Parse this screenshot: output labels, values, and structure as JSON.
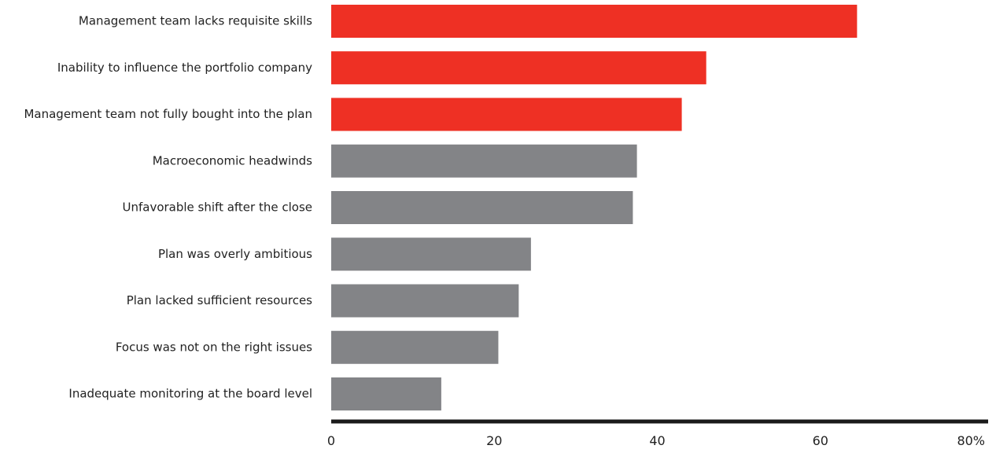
{
  "chart_data": {
    "type": "bar",
    "orientation": "horizontal",
    "categories": [
      "Management team lacks requisite skills",
      "Inability to influence the portfolio company",
      "Management team not fully bought into the plan",
      "Macroeconomic headwinds",
      "Unfavorable shift after the close",
      "Plan was overly ambitious",
      "Plan lacked sufficient resources",
      "Focus was not on the right issues",
      "Inadequate monitoring at the board level"
    ],
    "values": [
      64.5,
      46,
      43,
      37.5,
      37,
      24.5,
      23,
      20.5,
      13.5
    ],
    "highlight": [
      true,
      true,
      true,
      false,
      false,
      false,
      false,
      false,
      false
    ],
    "xlim": [
      0,
      80
    ],
    "xticks": [
      0,
      20,
      40,
      60,
      80
    ],
    "xtick_labels": [
      "0",
      "20",
      "40",
      "60",
      "80%"
    ],
    "grid": false,
    "colors": {
      "highlight": "#ee3024",
      "default": "#838487",
      "axis": "#1a1a1a"
    }
  }
}
